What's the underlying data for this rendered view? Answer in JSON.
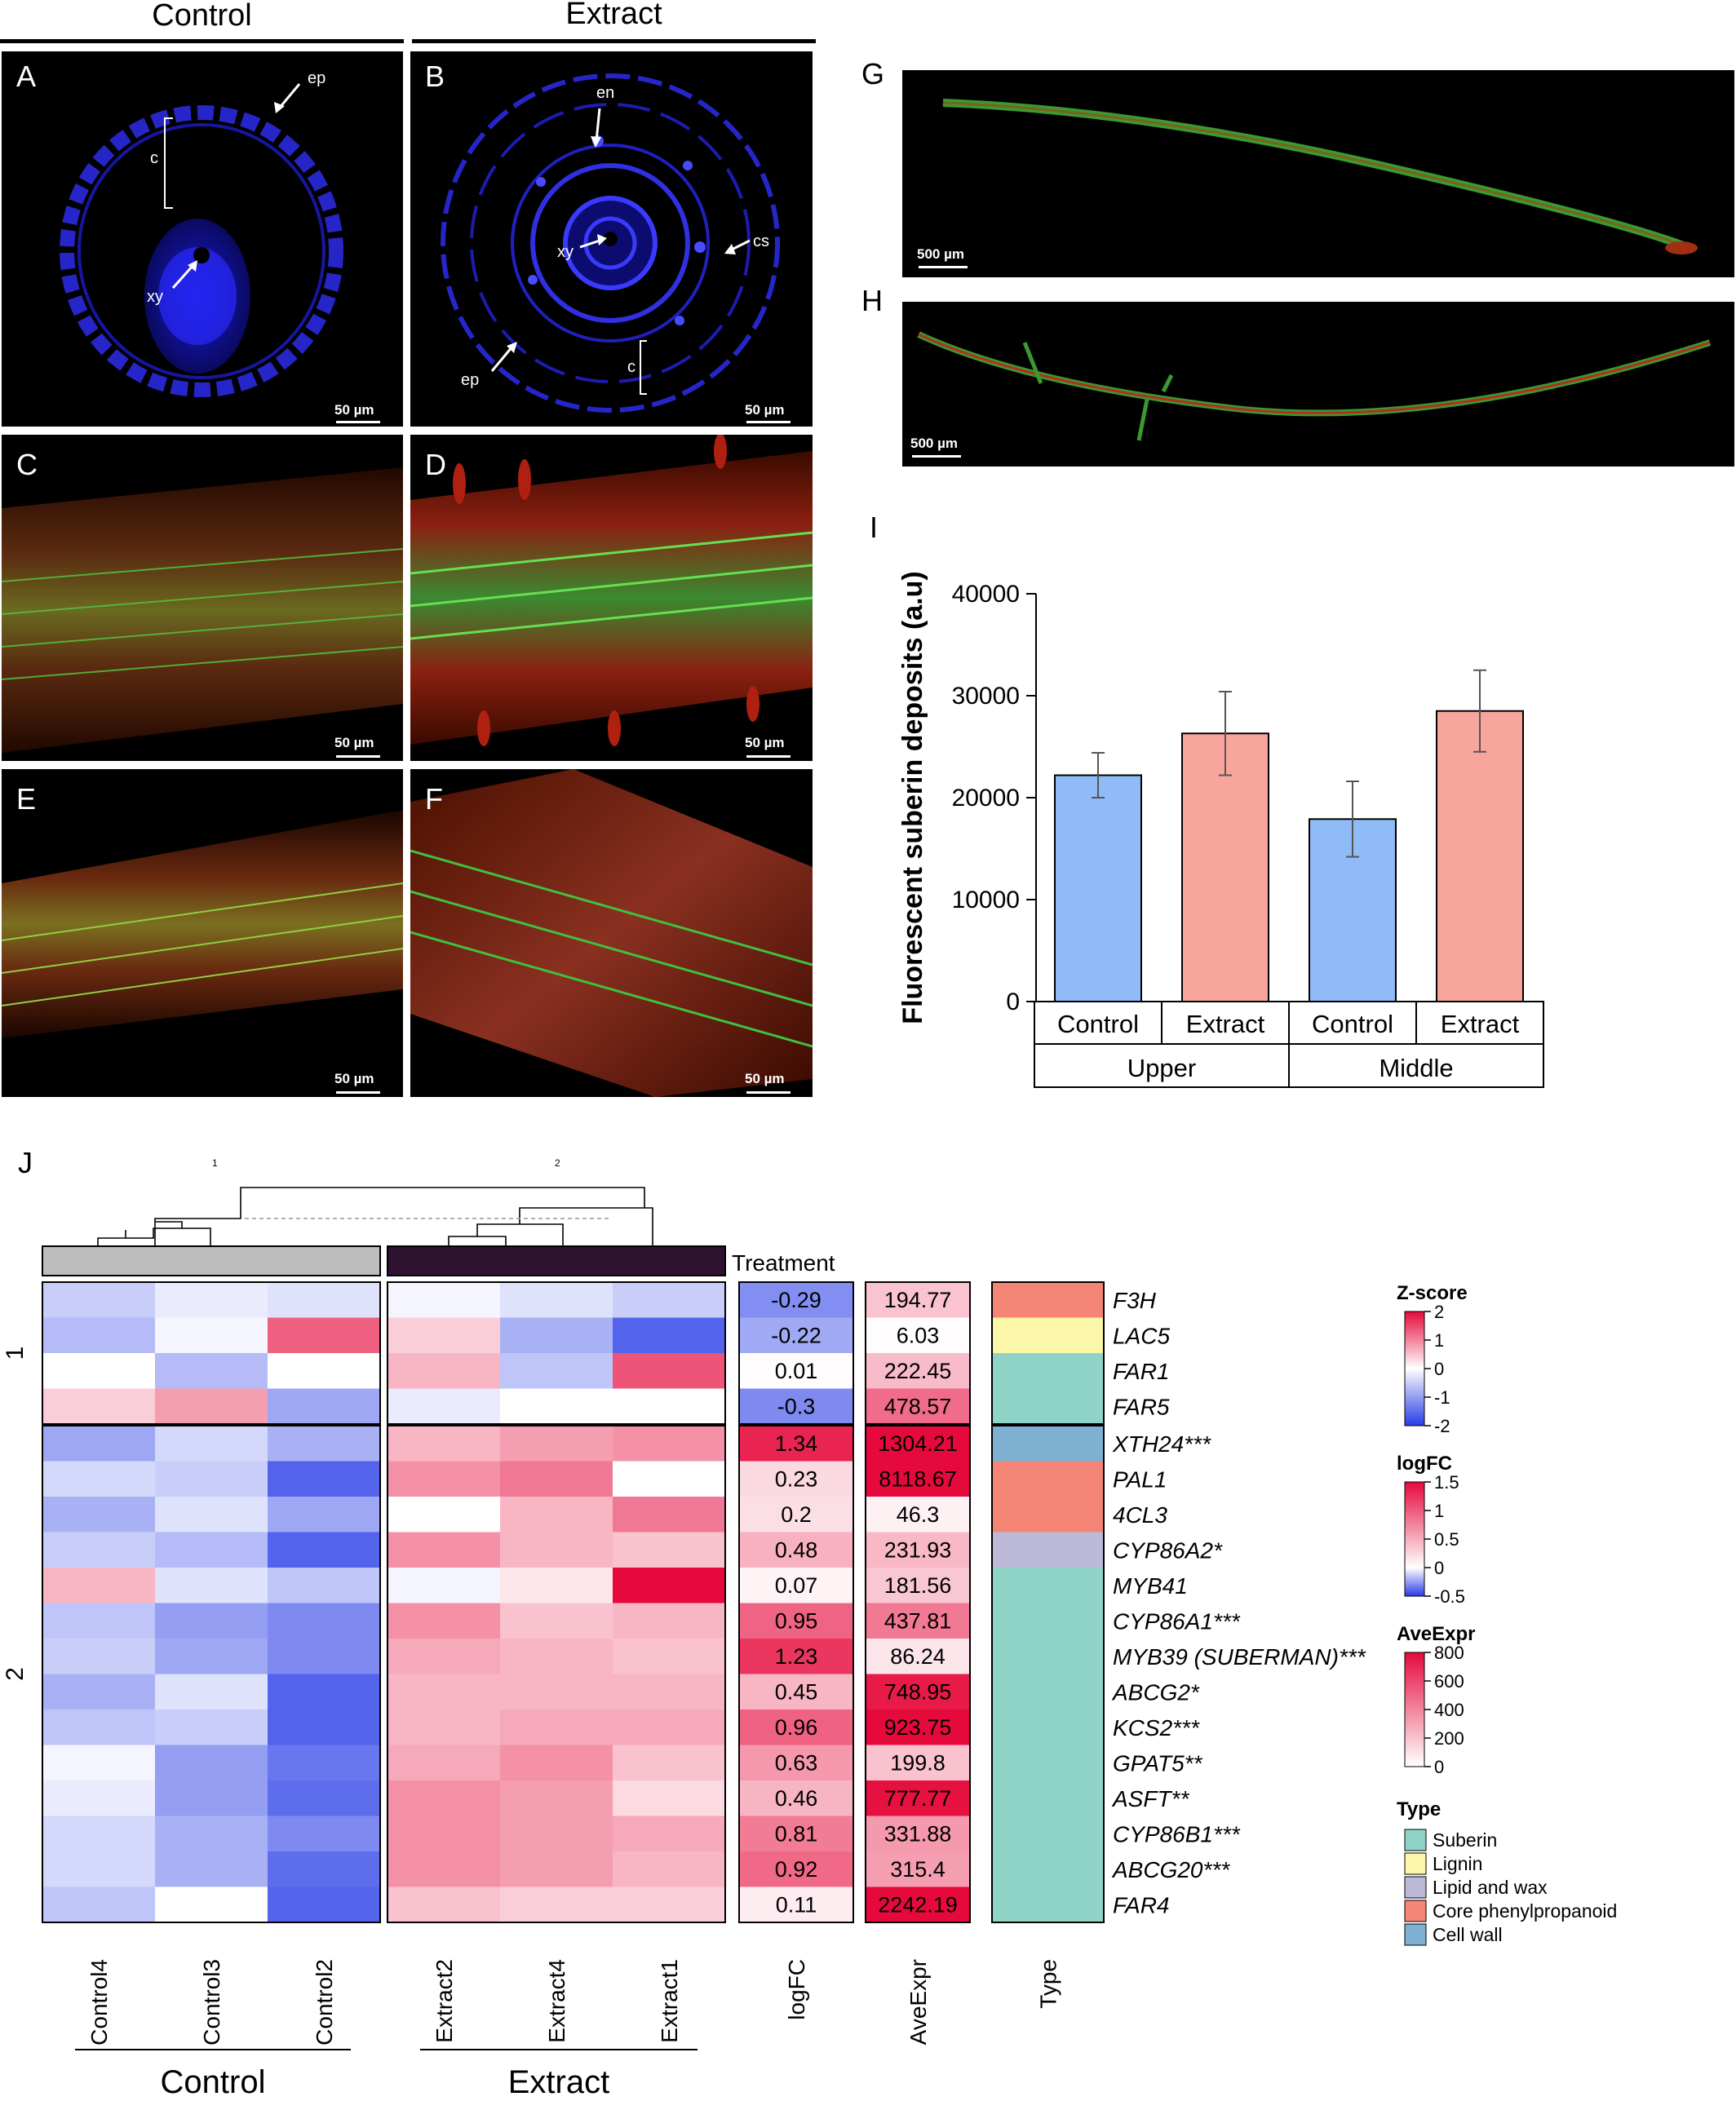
{
  "micrographs": {
    "group_control": "Control",
    "group_extract": "Extract",
    "panels": {
      "A": {
        "letter": "A",
        "scale": "50 µm",
        "labels": {
          "ep": "ep",
          "c": "c",
          "xy": "xy"
        }
      },
      "B": {
        "letter": "B",
        "scale": "50 µm",
        "labels": {
          "en": "en",
          "xy": "xy",
          "cs": "cs",
          "ep": "ep",
          "c": "c"
        }
      },
      "C": {
        "letter": "C",
        "scale": "50 µm"
      },
      "D": {
        "letter": "D",
        "scale": "50 µm"
      },
      "E": {
        "letter": "E",
        "scale": "50 µm"
      },
      "F": {
        "letter": "F",
        "scale": "50 µm"
      },
      "G": {
        "letter": "G",
        "scale": "500 µm"
      },
      "H": {
        "letter": "H",
        "scale": "500 µm"
      }
    }
  },
  "chart_data": [
    {
      "panel": "I",
      "type": "bar",
      "ylabel": "Fluorescent suberin deposits (a.u)",
      "ylim": [
        0,
        40000
      ],
      "yticks": [
        0,
        10000,
        20000,
        30000,
        40000
      ],
      "groups": [
        "Upper",
        "Middle"
      ],
      "categories": [
        "Control",
        "Extract",
        "Control",
        "Extract"
      ],
      "values": [
        22200,
        26300,
        17900,
        28500
      ],
      "errors": [
        2200,
        4100,
        3700,
        4000
      ],
      "colors": [
        "#8fbcf7",
        "#f7a59d",
        "#8fbcf7",
        "#f7a59d"
      ]
    },
    {
      "panel": "J",
      "type": "heatmap",
      "dendrogram_labels": [
        "1",
        "2"
      ],
      "treatment_label": "Treatment",
      "treatment_colors": {
        "Control": "#bdbdbd",
        "Extract": "#2e1230"
      },
      "columns": [
        "Control4",
        "Control3",
        "Control2",
        "Extract2",
        "Extract4",
        "Extract1"
      ],
      "column_groups": [
        "Control",
        "Extract"
      ],
      "row_clusters": [
        "1",
        "2"
      ],
      "cluster_sizes": [
        4,
        14
      ],
      "genes": [
        "F3H",
        "LAC5",
        "FAR1",
        "FAR5",
        "XTH24***",
        "PAL1",
        "4CL3",
        "CYP86A2*",
        "MYB41",
        "CYP86A1***",
        "MYB39 (SUBERMAN)***",
        "ABCG2*",
        "KCS2***",
        "GPAT5**",
        "ASFT**",
        "CYP86B1***",
        "ABCG20***",
        "FAR4"
      ],
      "zscores": [
        [
          -0.5,
          -0.2,
          -0.3,
          -0.1,
          -0.3,
          -0.5
        ],
        [
          -0.7,
          -0.1,
          1.3,
          0.4,
          -0.8,
          -1.6
        ],
        [
          0.0,
          -0.7,
          0.0,
          0.6,
          -0.6,
          1.4
        ],
        [
          0.4,
          0.8,
          -0.9,
          -0.2,
          0.0,
          0.0
        ],
        [
          -0.9,
          -0.4,
          -0.8,
          0.6,
          0.8,
          0.9
        ],
        [
          -0.4,
          -0.5,
          -1.6,
          0.9,
          1.1,
          0.0
        ],
        [
          -0.8,
          -0.3,
          -0.9,
          0.0,
          0.6,
          1.1
        ],
        [
          -0.5,
          -0.7,
          -1.6,
          0.9,
          0.6,
          0.5
        ],
        [
          0.6,
          -0.3,
          -0.6,
          -0.1,
          0.2,
          2.0
        ],
        [
          -0.6,
          -1.0,
          -1.2,
          0.9,
          0.5,
          0.6
        ],
        [
          -0.5,
          -0.9,
          -1.2,
          0.7,
          0.6,
          0.5
        ],
        [
          -0.8,
          -0.3,
          -1.6,
          0.6,
          0.6,
          0.6
        ],
        [
          -0.6,
          -0.5,
          -1.6,
          0.6,
          0.7,
          0.7
        ],
        [
          -0.1,
          -1.0,
          -1.4,
          0.7,
          0.9,
          0.5
        ],
        [
          -0.2,
          -1.0,
          -1.5,
          0.9,
          0.8,
          0.3
        ],
        [
          -0.4,
          -0.8,
          -1.2,
          0.9,
          0.8,
          0.7
        ],
        [
          -0.4,
          -0.8,
          -1.5,
          0.9,
          0.8,
          0.6
        ],
        [
          -0.6,
          0.0,
          -1.6,
          0.5,
          0.4,
          0.4
        ]
      ],
      "logFC": [
        -0.29,
        -0.22,
        0.01,
        -0.3,
        1.34,
        0.23,
        0.2,
        0.48,
        0.07,
        0.95,
        1.23,
        0.45,
        0.96,
        0.63,
        0.46,
        0.81,
        0.92,
        0.11
      ],
      "logFC_labels": [
        "-0.29",
        "-0.22",
        "0.01",
        "-0.3",
        "1.34",
        "0.23",
        "0.2",
        "0.48",
        "0.07",
        "0.95",
        "1.23",
        "0.45",
        "0.96",
        "0.63",
        "0.46",
        "0.81",
        "0.92",
        "0.11"
      ],
      "AveExpr": [
        194.77,
        6.03,
        222.45,
        478.57,
        1304.21,
        8118.67,
        46.3,
        231.93,
        181.56,
        437.81,
        86.24,
        748.95,
        923.75,
        199.8,
        777.77,
        331.88,
        315.4,
        2242.19
      ],
      "AveExpr_labels": [
        "194.77",
        "6.03",
        "222.45",
        "478.57",
        "1304.21",
        "8118.67",
        "46.3",
        "231.93",
        "181.56",
        "437.81",
        "86.24",
        "748.95",
        "923.75",
        "199.8",
        "777.77",
        "331.88",
        "315.4",
        "2242.19"
      ],
      "type_per_gene": [
        "Core phenylpropanoid",
        "Lignin",
        "Suberin",
        "Suberin",
        "Cell wall",
        "Core phenylpropanoid",
        "Core phenylpropanoid",
        "Lipid and wax",
        "Suberin",
        "Suberin",
        "Suberin",
        "Suberin",
        "Suberin",
        "Suberin",
        "Suberin",
        "Suberin",
        "Suberin",
        "Suberin"
      ],
      "column_axis_labels": [
        "logFC",
        "AveExpr",
        "Type"
      ],
      "legends": {
        "zscore": {
          "title": "Z-score",
          "ticks": [
            "2",
            "1",
            "0",
            "-1",
            "-2"
          ],
          "range": [
            -2,
            2
          ]
        },
        "logFC": {
          "title": "logFC",
          "ticks": [
            "1.5",
            "1",
            "0.5",
            "0",
            "-0.5"
          ],
          "range": [
            -0.5,
            1.5
          ]
        },
        "AveExpr": {
          "title": "AveExpr",
          "ticks": [
            "800",
            "600",
            "400",
            "200",
            "0"
          ],
          "range": [
            0,
            800
          ]
        },
        "type": {
          "title": "Type",
          "entries": [
            {
              "name": "Suberin",
              "color": "#8fd4c6"
            },
            {
              "name": "Lignin",
              "color": "#fbf6a8"
            },
            {
              "name": "Lipid and wax",
              "color": "#bcbad8"
            },
            {
              "name": "Core phenylpropanoid",
              "color": "#f58675"
            },
            {
              "name": "Cell wall",
              "color": "#7eb0d2"
            }
          ]
        }
      }
    }
  ],
  "panel_letters": {
    "I": "I",
    "J": "J"
  }
}
